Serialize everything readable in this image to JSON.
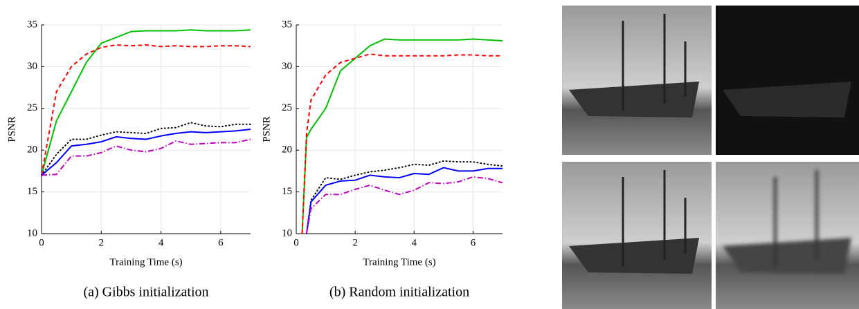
{
  "chart_data": [
    {
      "type": "line",
      "caption": "(a) Gibbs initialization",
      "xlabel": "Training Time (s)",
      "ylabel": "PSNR",
      "x": [
        0,
        0.5,
        1,
        1.5,
        2,
        2.5,
        3,
        3.5,
        4,
        4.5,
        5,
        5.5,
        6,
        6.5,
        7
      ],
      "xlim": [
        0,
        7
      ],
      "ylim": [
        10,
        35
      ],
      "xticks": [
        0,
        2,
        4,
        6
      ],
      "yticks": [
        10,
        15,
        20,
        25,
        30,
        35
      ],
      "grid": true,
      "series": [
        {
          "color": "#00c000",
          "style": "solid",
          "values": [
            17,
            23.5,
            27,
            30.5,
            32.8,
            33.5,
            34.2,
            34.3,
            34.3,
            34.3,
            34.4,
            34.3,
            34.3,
            34.3,
            34.4
          ]
        },
        {
          "color": "#ff0000",
          "style": "dash",
          "values": [
            17,
            27,
            30,
            31.5,
            32.3,
            32.6,
            32.5,
            32.6,
            32.4,
            32.5,
            32.4,
            32.4,
            32.5,
            32.5,
            32.4
          ]
        },
        {
          "color": "#000000",
          "style": "dot",
          "values": [
            17,
            19.5,
            21.3,
            21.3,
            21.8,
            22.2,
            22.1,
            22,
            22.6,
            22.7,
            23.3,
            22.9,
            22.8,
            23.1,
            23.1
          ]
        },
        {
          "color": "#0000ff",
          "style": "solid",
          "values": [
            17,
            18.5,
            20.5,
            20.7,
            21,
            21.6,
            21.4,
            21.3,
            21.7,
            22,
            22.2,
            22.1,
            22.2,
            22.3,
            22.5
          ]
        },
        {
          "color": "#c000c0",
          "style": "dashdot",
          "values": [
            17,
            17.1,
            19.3,
            19.3,
            19.7,
            20.5,
            20,
            19.8,
            20.2,
            21.1,
            20.7,
            20.8,
            20.9,
            20.9,
            21.3
          ]
        }
      ]
    },
    {
      "type": "line",
      "caption": "(b) Random initialization",
      "xlabel": "Training Time (s)",
      "ylabel": "PSNR",
      "x": [
        0.2,
        0.35,
        0.5,
        1,
        1.5,
        2,
        2.5,
        3,
        3.5,
        4,
        4.5,
        5,
        5.5,
        6,
        6.5,
        7
      ],
      "xlim": [
        0,
        7
      ],
      "ylim": [
        10,
        35
      ],
      "xticks": [
        0,
        2,
        4,
        6
      ],
      "yticks": [
        10,
        15,
        20,
        25,
        30,
        35
      ],
      "grid": true,
      "series": [
        {
          "color": "#00c000",
          "style": "solid",
          "values": [
            10,
            21.5,
            22.5,
            25,
            29.5,
            31,
            32.5,
            33.3,
            33.2,
            33.2,
            33.2,
            33.2,
            33.2,
            33.3,
            33.2,
            33.1
          ]
        },
        {
          "color": "#ff0000",
          "style": "dash",
          "values": [
            10,
            22,
            26,
            29,
            30.5,
            31,
            31.5,
            31.3,
            31.3,
            31.3,
            31.3,
            31.3,
            31.4,
            31.4,
            31.3,
            31.3
          ]
        },
        {
          "color": "#000000",
          "style": "dot",
          "values": [
            null,
            10,
            14,
            16.7,
            16.5,
            17,
            17.4,
            17.6,
            17.9,
            18.3,
            18.2,
            18.7,
            18.6,
            18.6,
            18.3,
            18.1
          ]
        },
        {
          "color": "#0000ff",
          "style": "solid",
          "values": [
            null,
            10,
            13.8,
            15.8,
            16.3,
            16.4,
            17,
            16.8,
            16.7,
            17.2,
            17.1,
            17.9,
            17.5,
            17.5,
            17.8,
            17.8
          ]
        },
        {
          "color": "#c000c0",
          "style": "dashdot",
          "values": [
            null,
            10,
            13,
            14.7,
            14.7,
            15.3,
            15.8,
            15.2,
            14.7,
            15.2,
            16.1,
            16,
            16.2,
            16.8,
            16.6,
            16.1
          ]
        }
      ]
    }
  ]
}
